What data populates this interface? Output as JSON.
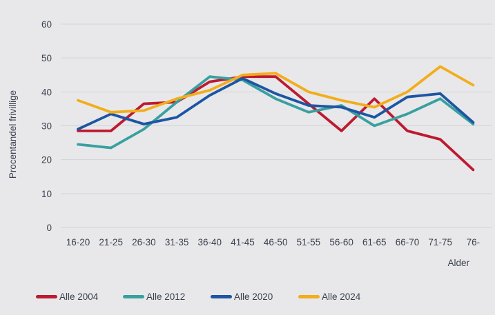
{
  "chart_data": {
    "type": "line",
    "title": "",
    "xlabel": "Alder",
    "ylabel": "Procentandel frivillige",
    "categories": [
      "16-20",
      "21-25",
      "26-30",
      "31-35",
      "36-40",
      "41-45",
      "46-50",
      "51-55",
      "56-60",
      "61-65",
      "66-70",
      "71-75",
      "76-"
    ],
    "y_ticks": [
      0,
      10,
      20,
      30,
      40,
      50,
      60
    ],
    "ylim": [
      0,
      65
    ],
    "grid": "horizontal-only",
    "legend_position": "bottom",
    "colors": {
      "background": "#e8e8ea",
      "gridline": "#d3d4d6",
      "text": "#3b4250"
    },
    "series": [
      {
        "name": "Alle 2004",
        "color": "#bd1a31",
        "values": [
          28.5,
          28.5,
          36.5,
          37,
          43,
          44.5,
          44.5,
          36.5,
          28.5,
          38,
          28.5,
          26,
          17
        ]
      },
      {
        "name": "Alle 2012",
        "color": "#39a0a0",
        "values": [
          24.5,
          23.5,
          29,
          37,
          44.5,
          43.5,
          38,
          34,
          36,
          30,
          33.5,
          38,
          30.5
        ]
      },
      {
        "name": "Alle 2020",
        "color": "#1d55a3",
        "values": [
          29,
          33.5,
          30.5,
          32.5,
          39,
          44,
          39.5,
          36,
          35.5,
          32.5,
          38.5,
          39.5,
          31
        ]
      },
      {
        "name": "Alle 2024",
        "color": "#f2ad1b",
        "values": [
          37.5,
          34,
          34.5,
          38,
          40.5,
          45,
          45.5,
          40,
          37.5,
          35.5,
          40,
          47.5,
          42
        ]
      }
    ]
  }
}
